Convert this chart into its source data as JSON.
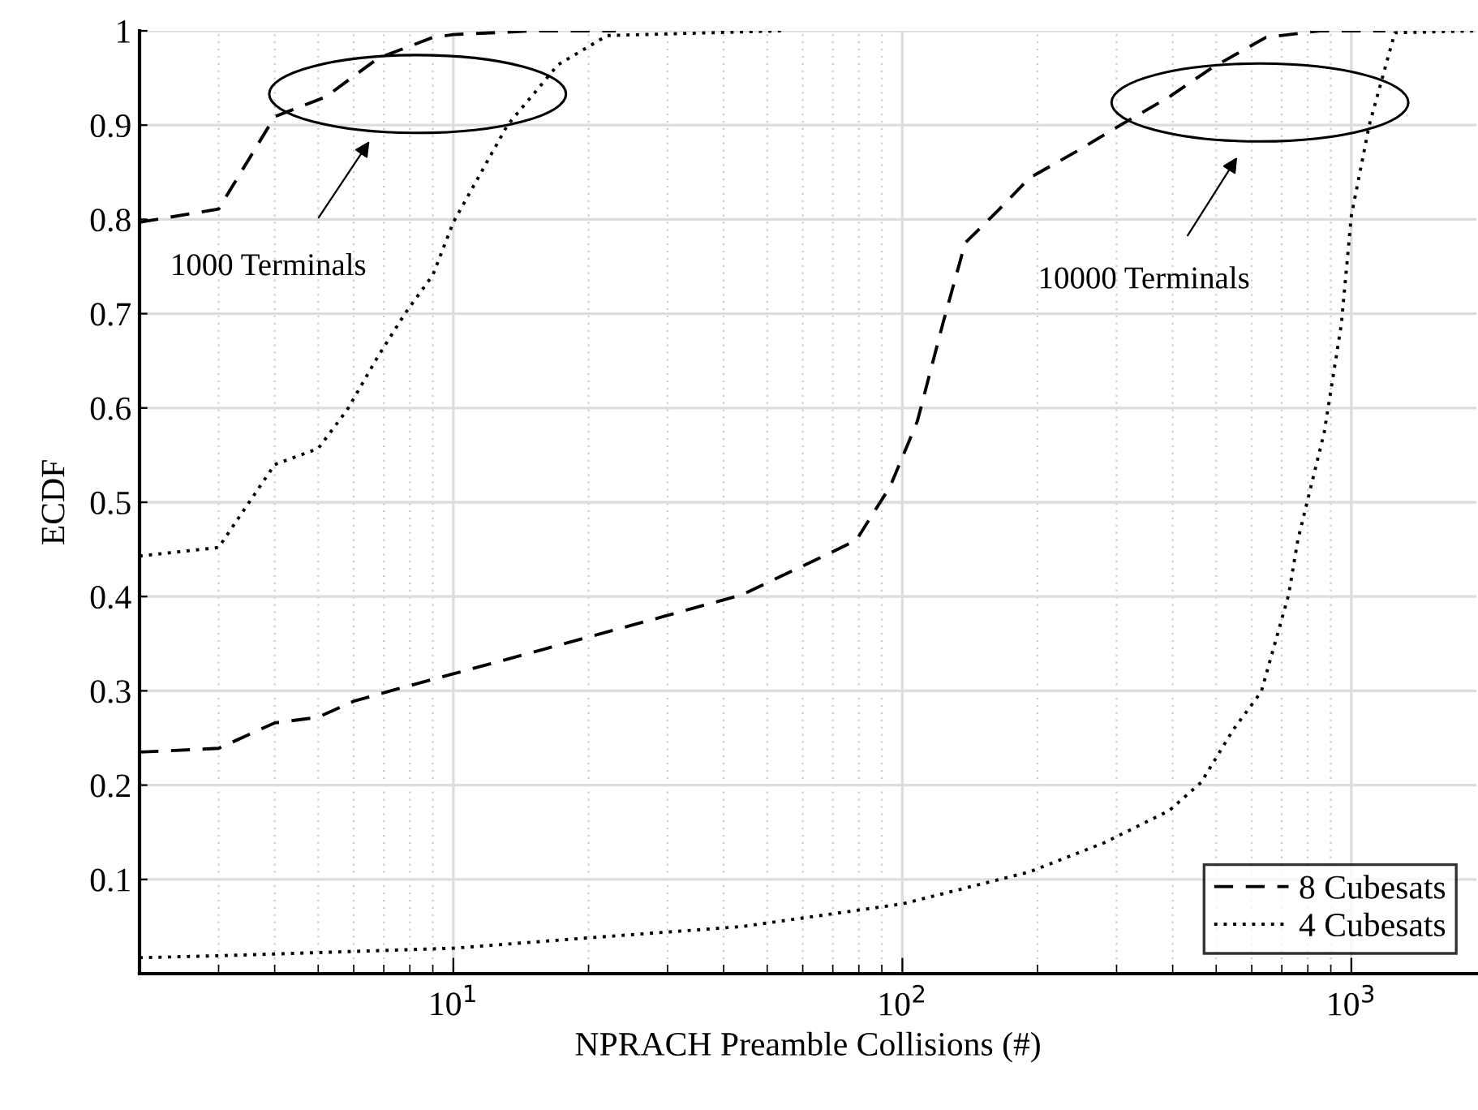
{
  "chart_data": {
    "type": "line",
    "xlabel": "NPRACH Preamble Collisions (#)",
    "ylabel": "ECDF",
    "log": "x",
    "grid": true,
    "legend": "bottom right",
    "marker": "none",
    "xlim": [
      2,
      1900
    ],
    "xticks": [
      {
        "value": 10,
        "label": "10$^{1}$"
      },
      {
        "value": 100,
        "label": "10$^{2}$"
      },
      {
        "value": 1000,
        "label": "10$^{3}$"
      }
    ],
    "ylim": [
      0,
      1
    ],
    "yticks": [
      0.1,
      0.2,
      0.3,
      0.4,
      0.5,
      0.6,
      0.7,
      0.8,
      0.9,
      1
    ],
    "series": [
      {
        "name": "8 Cubesats",
        "color": "#000000",
        "line_style": "dashed",
        "x": [
          2,
          3,
          4,
          5.2,
          6.8,
          9,
          10,
          15,
          23
        ],
        "values": [
          0.797,
          0.811,
          0.909,
          0.93,
          0.971,
          0.993,
          0.996,
          1.0,
          1.0
        ]
      },
      {
        "name": "4 Cubesats",
        "color": "#000000",
        "line_style": "dotted",
        "x": [
          2,
          3,
          4,
          5,
          5.8,
          6.8,
          7.8,
          9,
          10,
          13.2,
          17.1,
          22,
          54
        ],
        "values": [
          0.443,
          0.452,
          0.54,
          0.557,
          0.598,
          0.655,
          0.7,
          0.741,
          0.797,
          0.9,
          0.964,
          0.995,
          1.0
        ]
      },
      {
        "color": "#000000",
        "line_style": "dashed",
        "x": [
          2,
          3,
          4,
          5,
          6,
          7.5,
          10,
          20,
          30,
          44,
          71,
          79,
          94,
          108,
          123,
          138,
          163,
          192,
          246,
          306,
          393,
          490,
          645,
          850,
          1190
        ],
        "values": [
          0.235,
          0.239,
          0.266,
          0.272,
          0.289,
          0.302,
          0.318,
          0.357,
          0.38,
          0.402,
          0.449,
          0.46,
          0.517,
          0.586,
          0.689,
          0.775,
          0.809,
          0.844,
          0.873,
          0.9,
          0.93,
          0.961,
          0.993,
          1.0,
          1.0
        ]
      },
      {
        "color": "#000000",
        "line_style": "dotted",
        "x": [
          2,
          3,
          10,
          20,
          44,
          100,
          192,
          282,
          393,
          463,
          546,
          630,
          725,
          760,
          870,
          950,
          1000,
          1096,
          1250,
          1900
        ],
        "values": [
          0.017,
          0.019,
          0.027,
          0.038,
          0.05,
          0.074,
          0.108,
          0.139,
          0.173,
          0.203,
          0.259,
          0.299,
          0.402,
          0.46,
          0.574,
          0.689,
          0.804,
          0.9,
          0.998,
          1.0
        ]
      }
    ],
    "annotations": [
      "1000 Terminals",
      "10000 Terminals"
    ]
  }
}
